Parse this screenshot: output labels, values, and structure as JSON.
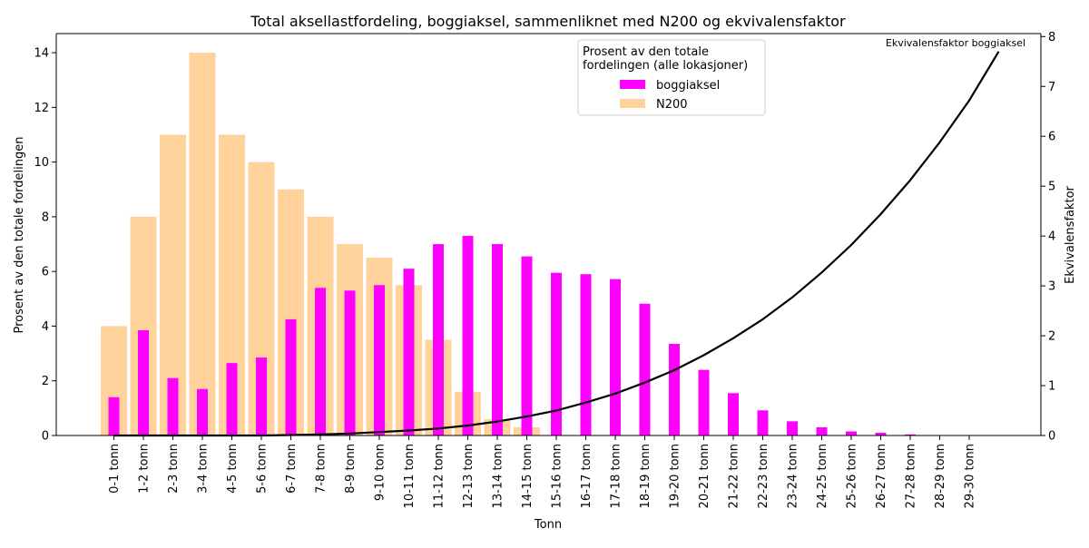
{
  "chart_data": {
    "type": "bar",
    "title": "Total aksellastfordeling, boggiaksel, sammenliknet med N200 og ekvivalensfaktor",
    "xlabel": "Tonn",
    "ylabel": "Prosent av den totale fordelingen",
    "y2label": "Ekvivalensfaktor",
    "ylim": [
      0,
      14.7
    ],
    "y2lim": [
      0,
      8.06
    ],
    "yticks": [
      "0",
      "2",
      "4",
      "6",
      "8",
      "10",
      "12",
      "14"
    ],
    "y2ticks": [
      "0",
      "1",
      "2",
      "3",
      "4",
      "5",
      "6",
      "7",
      "8"
    ],
    "categories": [
      "0-1 tonn",
      "1-2 tonn",
      "2-3 tonn",
      "3-4 tonn",
      "4-5 tonn",
      "5-6 tonn",
      "6-7 tonn",
      "7-8 tonn",
      "8-9 tonn",
      "9-10 tonn",
      "10-11 tonn",
      "11-12 tonn",
      "12-13 tonn",
      "13-14 tonn",
      "14-15 tonn",
      "15-16 tonn",
      "16-17 tonn",
      "17-18 tonn",
      "18-19 tonn",
      "19-20 tonn",
      "20-21 tonn",
      "21-22 tonn",
      "22-23 tonn",
      "23-24 tonn",
      "24-25 tonn",
      "25-26 tonn",
      "26-27 tonn",
      "27-28 tonn",
      "28-29 tonn",
      "29-30 tonn"
    ],
    "legend_title": "Prosent av den totale\nfordelingen (alle lokasjoner)",
    "legend_placement": "top-center-right",
    "series": [
      {
        "name": "boggiaksel",
        "color": "#ff00ff",
        "values": [
          1.4,
          3.85,
          2.1,
          1.7,
          2.65,
          2.85,
          4.25,
          5.4,
          5.3,
          5.5,
          6.1,
          7.0,
          7.3,
          7.0,
          6.55,
          5.95,
          5.9,
          5.72,
          4.82,
          3.35,
          2.4,
          1.55,
          0.92,
          0.52,
          0.3,
          0.15,
          0.1,
          0.04,
          0.0,
          0.0
        ]
      },
      {
        "name": "N200",
        "color": "#ffd29b",
        "values": [
          4.0,
          8.0,
          11.0,
          14.0,
          11.0,
          10.0,
          9.0,
          8.0,
          7.0,
          6.5,
          5.5,
          3.5,
          1.6,
          0.6,
          0.3,
          0,
          0,
          0,
          0,
          0,
          0,
          0,
          0,
          0,
          0,
          0,
          0,
          0,
          0,
          0
        ]
      }
    ],
    "line_series": {
      "label": "Ekvivalensfaktor boggiaksel",
      "axis": "right",
      "color": "#000000",
      "x": [
        0,
        1,
        2,
        3,
        4,
        5,
        6,
        7,
        8,
        9,
        10,
        11,
        12,
        13,
        14,
        15,
        16,
        17,
        18,
        19,
        20,
        21,
        22,
        23,
        24,
        25,
        26,
        27,
        28,
        29,
        30
      ],
      "values": [
        0.0,
        0.0,
        0.0,
        0.0,
        0.0,
        0.0,
        0.01,
        0.02,
        0.04,
        0.07,
        0.1,
        0.14,
        0.2,
        0.28,
        0.38,
        0.5,
        0.66,
        0.84,
        1.06,
        1.31,
        1.61,
        1.95,
        2.33,
        2.77,
        3.27,
        3.82,
        4.44,
        5.12,
        5.88,
        6.72,
        7.7
      ]
    }
  }
}
